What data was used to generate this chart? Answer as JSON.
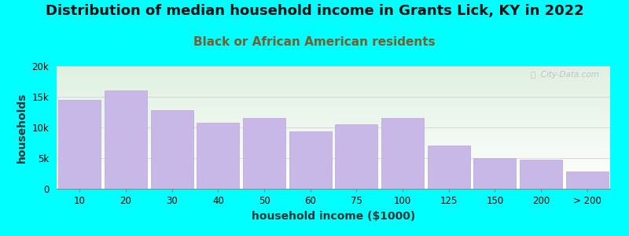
{
  "title": "Distribution of median household income in Grants Lick, KY in 2022",
  "subtitle": "Black or African American residents",
  "xlabel": "household income ($1000)",
  "ylabel": "households",
  "background_outer": "#00FFFF",
  "background_inner_top": "#dff0e0",
  "background_inner_bottom": "#ffffff",
  "bar_color": "#c8b8e8",
  "bar_edge_color": "#b8a8d8",
  "categories": [
    "10",
    "20",
    "30",
    "40",
    "50",
    "60",
    "75",
    "100",
    "125",
    "150",
    "200",
    "> 200"
  ],
  "values": [
    14500,
    16000,
    12800,
    10800,
    11500,
    9400,
    10500,
    11500,
    7000,
    5000,
    4700,
    2800
  ],
  "ylim": [
    0,
    20000
  ],
  "yticks": [
    0,
    5000,
    10000,
    15000,
    20000
  ],
  "ytick_labels": [
    "0",
    "5k",
    "10k",
    "15k",
    "20k"
  ],
  "title_fontsize": 13,
  "subtitle_fontsize": 11,
  "axis_label_fontsize": 10,
  "tick_fontsize": 8.5,
  "title_color": "#111111",
  "subtitle_color": "#7a5c2e",
  "watermark_text": "ⓘ  City-Data.com"
}
